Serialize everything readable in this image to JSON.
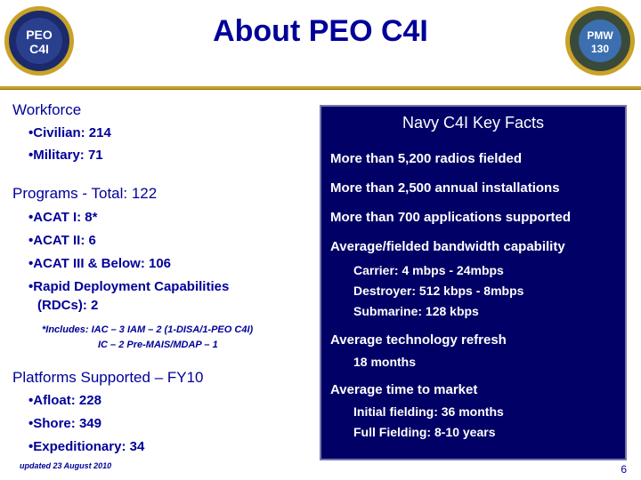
{
  "header": {
    "title": "About PEO C4I",
    "logo_left_text": "PEO C4I",
    "logo_right_text": "PMW 130"
  },
  "left": {
    "workforce": {
      "heading": "Workforce",
      "items": [
        "Civilian: 214",
        "Military: 71"
      ]
    },
    "programs": {
      "heading": "Programs - Total:  122",
      "items": [
        "ACAT I:  8*",
        "ACAT II:  6",
        "ACAT III & Below: 106"
      ],
      "rdc_line1": "Rapid Deployment Capabilities",
      "rdc_line2": "(RDCs): 2",
      "note_line1": "*Includes:  IAC – 3      IAM – 2 (1-DISA/1-PEO C4I)",
      "note_line2": "IC – 2       Pre-MAIS/MDAP – 1"
    },
    "platforms": {
      "heading": "Platforms Supported – FY10",
      "items": [
        "Afloat: 228",
        "Shore: 349",
        "Expeditionary:  34"
      ]
    },
    "updated": "updated 23 August 2010"
  },
  "facts": {
    "title": "Navy C4I Key Facts",
    "radios": "More than 5,200 radios fielded",
    "installations": "More than 2,500 annual installations",
    "applications": "More than 700 applications supported",
    "bandwidth": "Average/fielded bandwidth capability",
    "carrier": "Carrier:  4 mbps - 24mbps",
    "destroyer": "Destroyer:  512 kbps - 8mbps",
    "submarine": "Submarine:  128 kbps",
    "refresh": "Average technology refresh",
    "refresh_value": "18 months",
    "market": "Average time to market",
    "initial": "Initial fielding:  36 months",
    "full": "Full Fielding:  8-10 years"
  },
  "footer": {
    "page": "6"
  },
  "colors": {
    "title": "#000099",
    "box": "#000066",
    "rule": "#c9a227"
  }
}
